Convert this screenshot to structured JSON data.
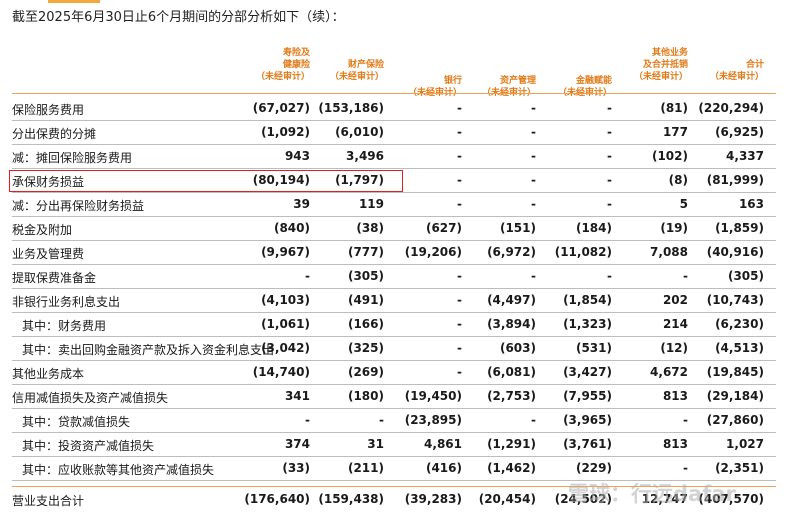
{
  "caption": "截至2025年6月30日止6个月期间的分部分析如下（续）：",
  "watermark": "雪球：行远dafar",
  "columns": [
    {
      "lines": [
        "寿险及",
        "健康险",
        "（未经审计）"
      ]
    },
    {
      "lines": [
        "财产保险",
        "（未经审计）"
      ]
    },
    {
      "lines": [
        "银行",
        "（未经审计）"
      ]
    },
    {
      "lines": [
        "资产管理",
        "（未经审计）"
      ]
    },
    {
      "lines": [
        "金融赋能",
        "（未经审计）"
      ]
    },
    {
      "lines": [
        "其他业务",
        "及合并抵销",
        "（未经审计）"
      ]
    },
    {
      "lines": [
        "合计",
        "（未经审计）"
      ]
    }
  ],
  "rows": [
    {
      "label": "保险服务费用",
      "values": [
        "(67,027)",
        "(153,186)",
        "-",
        "-",
        "-",
        "(81)",
        "(220,294)"
      ]
    },
    {
      "label": "分出保费的分摊",
      "values": [
        "(1,092)",
        "(6,010)",
        "-",
        "-",
        "-",
        "177",
        "(6,925)"
      ]
    },
    {
      "label": "减：摊回保险服务费用",
      "values": [
        "943",
        "3,496",
        "-",
        "-",
        "-",
        "(102)",
        "4,337"
      ]
    },
    {
      "label": "承保财务损益",
      "values": [
        "(80,194)",
        "(1,797)",
        "-",
        "-",
        "-",
        "(8)",
        "(81,999)"
      ]
    },
    {
      "label": "减：分出再保险财务损益",
      "values": [
        "39",
        "119",
        "-",
        "-",
        "-",
        "5",
        "163"
      ]
    },
    {
      "label": "税金及附加",
      "values": [
        "(840)",
        "(38)",
        "(627)",
        "(151)",
        "(184)",
        "(19)",
        "(1,859)"
      ]
    },
    {
      "label": "业务及管理费",
      "values": [
        "(9,967)",
        "(777)",
        "(19,206)",
        "(6,972)",
        "(11,082)",
        "7,088",
        "(40,916)"
      ]
    },
    {
      "label": "提取保费准备金",
      "values": [
        "-",
        "(305)",
        "-",
        "-",
        "-",
        "-",
        "(305)"
      ]
    },
    {
      "label": "非银行业务利息支出",
      "values": [
        "(4,103)",
        "(491)",
        "-",
        "(4,497)",
        "(1,854)",
        "202",
        "(10,743)"
      ]
    },
    {
      "label": "其中：财务费用",
      "values": [
        "(1,061)",
        "(166)",
        "-",
        "(3,894)",
        "(1,323)",
        "214",
        "(6,230)"
      ]
    },
    {
      "label": "其中：卖出回购金融资产款及拆入资金利息支出",
      "values": [
        "(3,042)",
        "(325)",
        "-",
        "(603)",
        "(531)",
        "(12)",
        "(4,513)"
      ]
    },
    {
      "label": "其他业务成本",
      "values": [
        "(14,740)",
        "(269)",
        "-",
        "(6,081)",
        "(3,427)",
        "4,672",
        "(19,845)"
      ]
    },
    {
      "label": "信用减值损失及资产减值损失",
      "values": [
        "341",
        "(180)",
        "(19,450)",
        "(2,753)",
        "(7,955)",
        "813",
        "(29,184)"
      ]
    },
    {
      "label": "其中：贷款减值损失",
      "values": [
        "-",
        "-",
        "(23,895)",
        "-",
        "(3,965)",
        "-",
        "(27,860)"
      ]
    },
    {
      "label": "其中：投资资产减值损失",
      "values": [
        "374",
        "31",
        "4,861",
        "(1,291)",
        "(3,761)",
        "813",
        "1,027"
      ]
    },
    {
      "label": "其中：应收账款等其他资产减值损失",
      "values": [
        "(33)",
        "(211)",
        "(416)",
        "(1,462)",
        "(229)",
        "-",
        "(2,351)"
      ]
    },
    {
      "label": "营业支出合计",
      "values": [
        "(176,640)",
        "(159,438)",
        "(39,283)",
        "(20,454)",
        "(24,502)",
        "12,747",
        "(407,570)"
      ]
    }
  ]
}
